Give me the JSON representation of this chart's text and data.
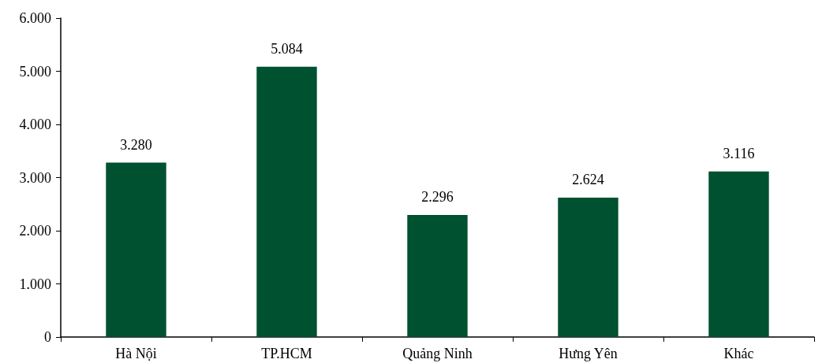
{
  "chart_data": {
    "type": "bar",
    "categories": [
      "Hà Nội",
      "TP.HCM",
      "Quảng Ninh",
      "Hưng Yên",
      "Khác"
    ],
    "values": [
      3280,
      5084,
      2296,
      2624,
      3116
    ],
    "value_labels": [
      "3.280",
      "5.084",
      "2.296",
      "2.624",
      "3.116"
    ],
    "color": "#00512f",
    "ylim": [
      0,
      6000
    ],
    "yticks": [
      0,
      {
        "value": 1000,
        "label": "1.000"
      },
      {
        "value": 2000,
        "label": "2.000"
      },
      {
        "value": 3000,
        "label": "3.000"
      },
      {
        "value": 4000,
        "label": "4.000"
      },
      {
        "value": 5000,
        "label": "5.000"
      },
      {
        "value": 6000,
        "label": "6.000"
      }
    ],
    "grid": false
  }
}
